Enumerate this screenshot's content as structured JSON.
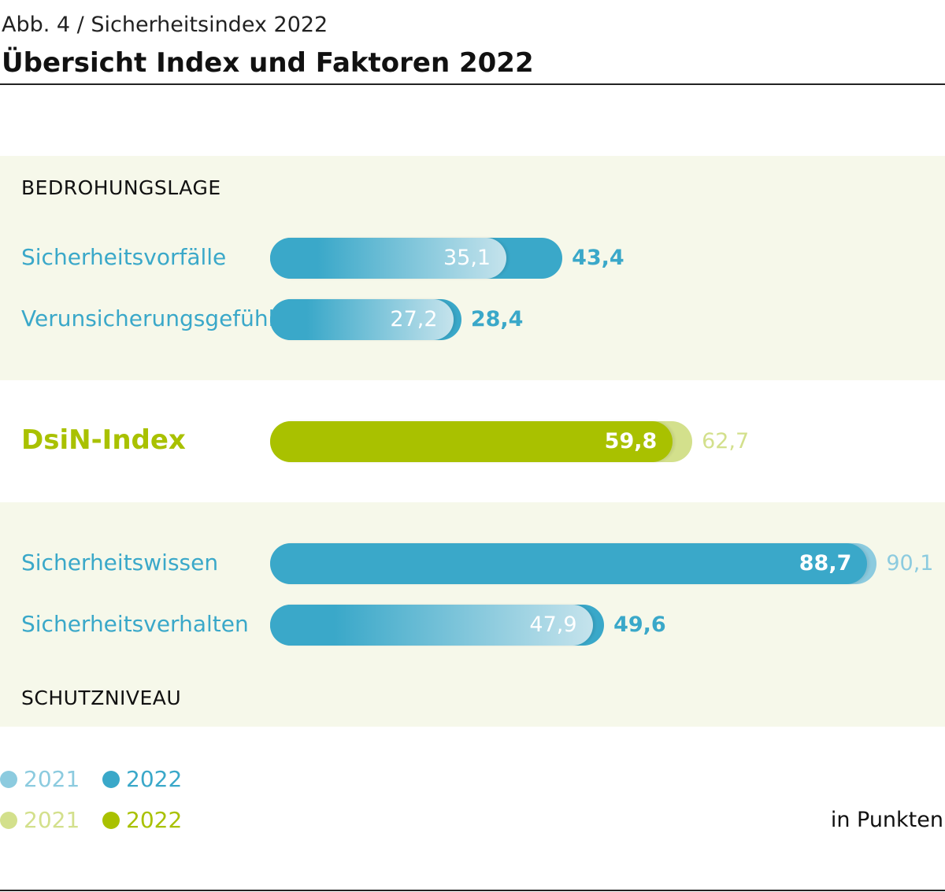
{
  "header": {
    "kicker": "Abb. 4 / Sicherheitsindex 2022",
    "title": "Übersicht Index und Faktoren 2022"
  },
  "colors": {
    "blue_2022": "#3aa8c9",
    "blue_2021": "#8ccbdf",
    "green_2022": "#a9c100",
    "green_2021": "#d3e08c",
    "panel_bg": "#f6f8ea"
  },
  "sections": {
    "top": "BEDROHUNGSLAGE",
    "bottom": "SCHUTZNIVEAU"
  },
  "chart_data": {
    "type": "bar",
    "orientation": "horizontal",
    "title": "Übersicht Index und Faktoren 2022",
    "unit": "in Punkten",
    "xlim": [
      0,
      100
    ],
    "series": [
      {
        "name": "2021",
        "values": [
          35.1,
          27.2,
          62.7,
          90.1,
          47.9
        ]
      },
      {
        "name": "2022",
        "values": [
          43.4,
          28.4,
          59.8,
          88.7,
          49.6
        ]
      }
    ],
    "rows": [
      {
        "category": "Sicherheitsvorfälle",
        "group": "BEDROHUNGSLAGE",
        "color": "blue",
        "v2021": 35.1,
        "v2022": 43.4,
        "label2021": "35,1",
        "label2022": "43,4"
      },
      {
        "category": "Verunsicherungsgefühl",
        "group": "BEDROHUNGSLAGE",
        "color": "blue",
        "v2021": 27.2,
        "v2022": 28.4,
        "label2021": "27,2",
        "label2022": "28,4"
      },
      {
        "category": "DsiN-Index",
        "group": "",
        "color": "green",
        "v2021": 62.7,
        "v2022": 59.8,
        "label2021": "62,7",
        "label2022": "59,8"
      },
      {
        "category": "Sicherheitswissen",
        "group": "SCHUTZNIVEAU",
        "color": "blue",
        "v2021": 90.1,
        "v2022": 88.7,
        "label2021": "90,1",
        "label2022": "88,7"
      },
      {
        "category": "Sicherheitsverhalten",
        "group": "SCHUTZNIVEAU",
        "color": "blue",
        "v2021": 47.9,
        "v2022": 49.6,
        "label2021": "47,9",
        "label2022": "49,6"
      }
    ],
    "legend": [
      {
        "label": "2021",
        "color": "#8ccbdf"
      },
      {
        "label": "2022",
        "color": "#3aa8c9"
      },
      {
        "label": "2021",
        "color": "#d3e08c"
      },
      {
        "label": "2022",
        "color": "#a9c100"
      }
    ]
  }
}
